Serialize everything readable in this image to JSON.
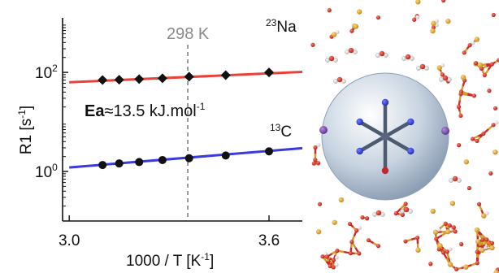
{
  "chart_data": {
    "type": "scatter",
    "xlabel_main": "1000 / T [K",
    "xlabel_sup": "-1",
    "xlabel_tail": "]",
    "ylabel_main": "R1 [s",
    "ylabel_sup": "-1",
    "ylabel_tail": "]",
    "x_ticks": [
      "3.0",
      "3.6"
    ],
    "x_tick_values": [
      3.0,
      3.6
    ],
    "y_ticks": [
      {
        "base": "10",
        "exp": "2",
        "value": 100
      },
      {
        "base": "10",
        "exp": "0",
        "value": 1
      }
    ],
    "xlim": [
      2.98,
      3.7
    ],
    "ylim_log10": [
      -1.0,
      3.1
    ],
    "ylog": true,
    "annotation": {
      "label": "298 K",
      "x": 3.356,
      "line_style": "dashed",
      "color": "#8a8a8a"
    },
    "ea_label": {
      "bold": "Ea",
      "text": "≈13.5 kJ.mol",
      "sup": "-1"
    },
    "series": [
      {
        "name": "Na",
        "isotope_sup": "23",
        "color": "#e8433a",
        "marker": "diamond",
        "x": [
          3.1,
          3.15,
          3.21,
          3.28,
          3.36,
          3.47,
          3.6
        ],
        "y": [
          70,
          71,
          73,
          76,
          82,
          88,
          100
        ],
        "fit_x": [
          3.0,
          3.7
        ],
        "fit_y_log10": [
          1.8,
          2.01
        ]
      },
      {
        "name": "C",
        "isotope_sup": "13",
        "color": "#3a3ae0",
        "marker": "circle",
        "x": [
          3.1,
          3.15,
          3.21,
          3.28,
          3.36,
          3.47,
          3.6
        ],
        "y": [
          1.35,
          1.45,
          1.55,
          1.7,
          1.85,
          2.1,
          2.55
        ],
        "fit_x": [
          3.0,
          3.7
        ],
        "fit_y_log10": [
          0.08,
          0.47
        ]
      }
    ]
  },
  "illustration": {
    "description_icon": "zeolite-framework-with-encapsulated-complex",
    "framework_colors": {
      "silicon": "#d49a2a",
      "oxygen": "#cc2a2a",
      "hydrogen": "#f2f2f2"
    },
    "sphere_color": "#aebfd3",
    "ion_color": "#7a4aa8"
  }
}
